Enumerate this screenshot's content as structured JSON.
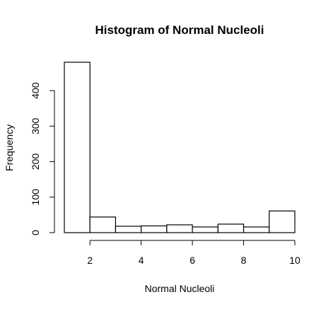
{
  "chart_data": {
    "type": "bar",
    "title": "Histogram of Normal Nucleoli",
    "xlabel": "Normal Nucleoli",
    "ylabel": "Frequency",
    "bins": [
      {
        "start": 1,
        "end": 2,
        "count": 480
      },
      {
        "start": 2,
        "end": 3,
        "count": 44
      },
      {
        "start": 3,
        "end": 4,
        "count": 18
      },
      {
        "start": 4,
        "end": 5,
        "count": 19
      },
      {
        "start": 5,
        "end": 6,
        "count": 22
      },
      {
        "start": 6,
        "end": 7,
        "count": 16
      },
      {
        "start": 7,
        "end": 8,
        "count": 24
      },
      {
        "start": 8,
        "end": 9,
        "count": 16
      },
      {
        "start": 9,
        "end": 10,
        "count": 61
      }
    ],
    "xlim": [
      1,
      10
    ],
    "ylim": [
      0,
      480
    ],
    "xticks": [
      2,
      4,
      6,
      8,
      10
    ],
    "yticks": [
      0,
      100,
      200,
      300,
      400
    ],
    "grid": false,
    "bar_fill": "#ffffff",
    "bar_stroke": "#000000"
  }
}
